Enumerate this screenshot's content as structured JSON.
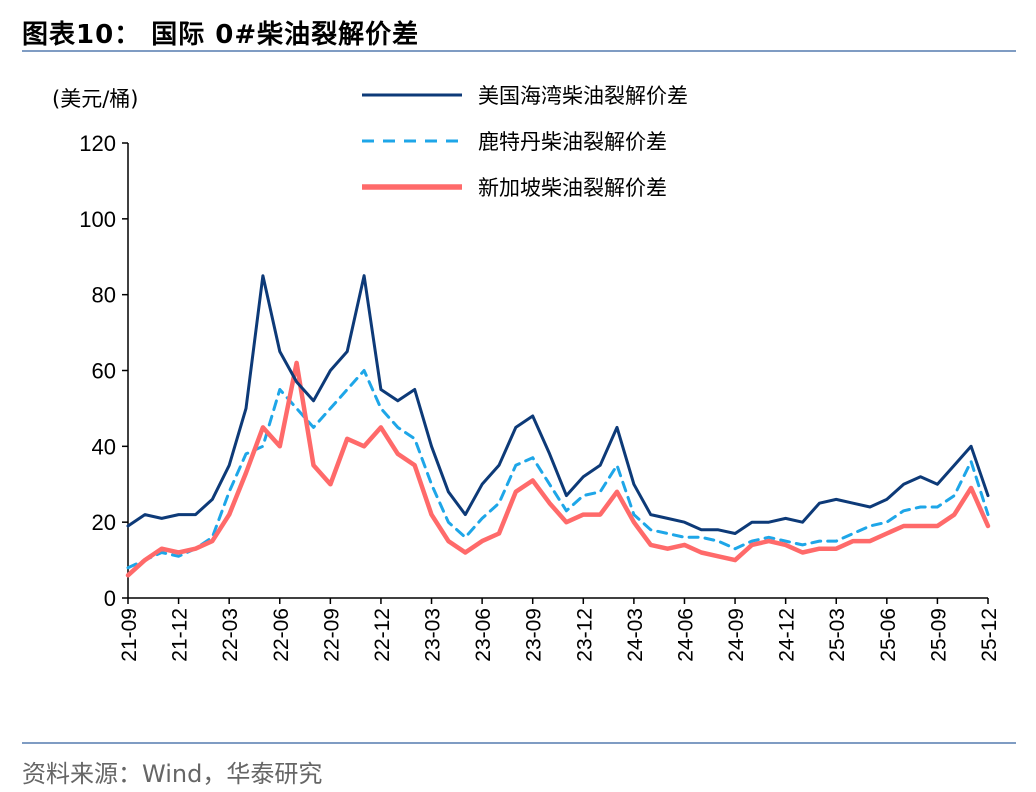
{
  "header": {
    "title": "图表10：  国际 0#柴油裂解价差"
  },
  "footer": {
    "source": "资料来源：Wind，华泰研究"
  },
  "colors": {
    "us": "#0d3a78",
    "rotterdam": "#1ea6e8",
    "singapore": "#ff6a6a",
    "rule": "#7f9cc3"
  },
  "chart_data": {
    "type": "line",
    "title": "",
    "unit_label": "(美元/桶)",
    "ylim": [
      0,
      120
    ],
    "yticks": [
      "0",
      "20",
      "40",
      "60",
      "80",
      "100",
      "120"
    ],
    "xticks": [
      "21-09",
      "21-12",
      "22-03",
      "22-06",
      "22-09",
      "22-12",
      "23-03",
      "23-06",
      "23-09",
      "23-12",
      "24-03",
      "24-06",
      "24-09",
      "24-12",
      "25-03",
      "25-06",
      "25-09",
      "25-12"
    ],
    "x_range": [
      "21-09",
      "25-12"
    ],
    "grid": false,
    "legend_position": "top-right",
    "x": [
      "21-09",
      "21-10",
      "21-11",
      "21-12",
      "22-01",
      "22-02",
      "22-03",
      "22-04",
      "22-05",
      "22-06",
      "22-07",
      "22-08",
      "22-09",
      "22-10",
      "22-11",
      "22-12",
      "23-01",
      "23-02",
      "23-03",
      "23-04",
      "23-05",
      "23-06",
      "23-07",
      "23-08",
      "23-09",
      "23-10",
      "23-11",
      "23-12",
      "24-01",
      "24-02",
      "24-03",
      "24-04",
      "24-05",
      "24-06",
      "24-07",
      "24-08",
      "24-09",
      "24-10",
      "24-11",
      "24-12",
      "25-01",
      "25-02",
      "25-03",
      "25-04",
      "25-05",
      "25-06",
      "25-07",
      "25-08",
      "25-09",
      "25-10",
      "25-11",
      "25-12"
    ],
    "series": [
      {
        "name": "美国海湾柴油裂解价差",
        "style": "solid",
        "values": [
          19,
          22,
          21,
          22,
          22,
          26,
          35,
          50,
          85,
          65,
          57,
          52,
          60,
          65,
          85,
          55,
          52,
          55,
          40,
          28,
          22,
          30,
          35,
          45,
          48,
          38,
          27,
          32,
          35,
          45,
          30,
          22,
          21,
          20,
          18,
          18,
          17,
          20,
          20,
          21,
          20,
          25,
          26,
          25,
          24,
          26,
          30,
          32,
          30,
          35,
          40,
          27
        ]
      },
      {
        "name": "鹿特丹柴油裂解价差",
        "style": "dashed",
        "values": [
          8,
          10,
          12,
          11,
          13,
          16,
          28,
          38,
          40,
          55,
          50,
          45,
          50,
          55,
          60,
          50,
          45,
          42,
          30,
          20,
          16,
          21,
          25,
          35,
          37,
          30,
          23,
          27,
          28,
          35,
          22,
          18,
          17,
          16,
          16,
          15,
          13,
          15,
          16,
          15,
          14,
          15,
          15,
          17,
          19,
          20,
          23,
          24,
          24,
          27,
          36,
          22
        ]
      },
      {
        "name": "新加坡柴油裂解价差",
        "style": "solid-thick",
        "values": [
          6,
          10,
          13,
          12,
          13,
          15,
          22,
          33,
          45,
          40,
          62,
          35,
          30,
          42,
          40,
          45,
          38,
          35,
          22,
          15,
          12,
          15,
          17,
          28,
          31,
          25,
          20,
          22,
          22,
          28,
          20,
          14,
          13,
          14,
          12,
          11,
          10,
          14,
          15,
          14,
          12,
          13,
          13,
          15,
          15,
          17,
          19,
          19,
          19,
          22,
          29,
          19
        ]
      }
    ]
  }
}
